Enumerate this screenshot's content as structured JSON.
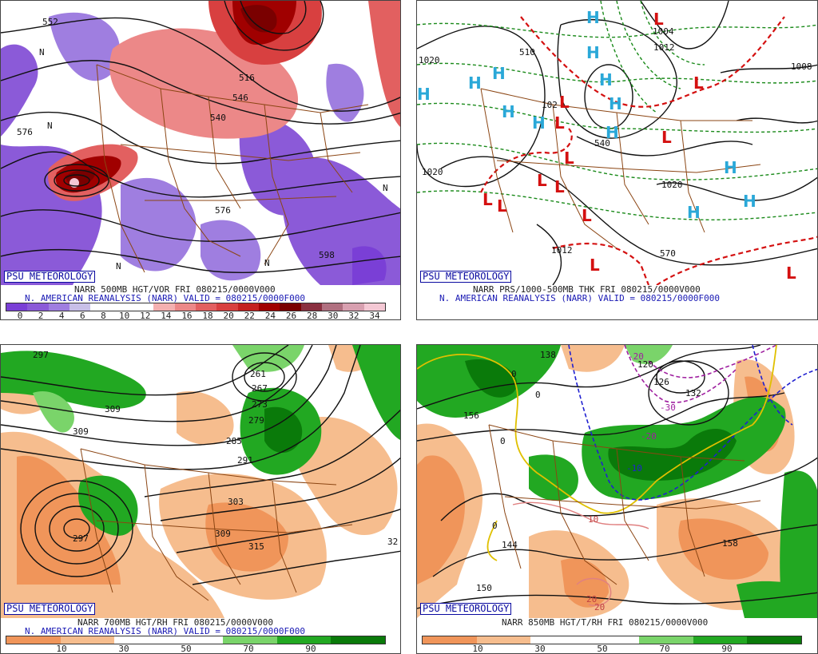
{
  "panels": [
    {
      "id": "p1",
      "badge": "PSU METEOROLOGY",
      "caption1": "NARR 500MB HGT/VOR FRI 080215/0000V000",
      "caption2": "N. AMERICAN REANALYSIS (NARR) VALID = 080215/0000F000",
      "ticks": [
        "0",
        "2",
        "4",
        "6",
        "8",
        "10",
        "12",
        "14",
        "16",
        "18",
        "20",
        "22",
        "24",
        "26",
        "28",
        "30",
        "32",
        "34"
      ],
      "colors": [
        "#7a3fd6",
        "#8b5ad8",
        "#9f7ee0",
        "#c8bfe8",
        "#ffffff",
        "#ffffff",
        "#ffffff",
        "#f4b0b0",
        "#ec8888",
        "#e26060",
        "#d84040",
        "#c42020",
        "#a00000",
        "#7a0000",
        "#8a3040",
        "#b07080",
        "#d8a0b0",
        "#f4c8d4"
      ],
      "map_labels": [
        "552",
        "576",
        "576",
        "598",
        "546",
        "540",
        "516",
        "N",
        "N",
        "N",
        "N",
        "N"
      ]
    },
    {
      "id": "p2",
      "badge": "PSU METEOROLOGY",
      "caption1": "NARR PRS/1000-500MB THK FRI 080215/0000V000",
      "caption2": "N. AMERICAN REANALYSIS (NARR) VALID = 080215/0000F000",
      "map_labels": [
        "1020",
        "1020",
        "1004",
        "1012",
        "1008",
        "1020",
        "102",
        "1012",
        "570",
        "510",
        "540"
      ],
      "highs": [
        "H",
        "H",
        "H",
        "H",
        "H",
        "H",
        "H",
        "H",
        "H",
        "H",
        "H",
        "H",
        "H"
      ],
      "lows": [
        "L",
        "L",
        "L",
        "L",
        "L",
        "L",
        "L",
        "L",
        "L",
        "L",
        "L",
        "L",
        "L"
      ]
    },
    {
      "id": "p3",
      "badge": "PSU METEOROLOGY",
      "caption1": "NARR 700MB HGT/RH FRI 080215/0000V000",
      "caption2": "N. AMERICAN REANALYSIS (NARR) VALID = 080215/0000F000",
      "ticks": [
        "10",
        "30",
        "50",
        "70",
        "90"
      ],
      "colors": [
        "#f0955a",
        "#f6bd8e",
        "#ffffff",
        "#ffffff",
        "#7ad46a",
        "#22a822",
        "#0a7a0a"
      ],
      "map_labels": [
        "297",
        "309",
        "309",
        "261",
        "267",
        "273",
        "279",
        "285",
        "291",
        "297",
        "303",
        "309",
        "315",
        "32"
      ]
    },
    {
      "id": "p4",
      "badge": "PSU METEOROLOGY",
      "caption1": "NARR 850MB HGT/T/RH FRI 080215/0000V000",
      "caption2": "",
      "ticks": [
        "10",
        "30",
        "50",
        "70",
        "90"
      ],
      "colors": [
        "#f0955a",
        "#f6bd8e",
        "#ffffff",
        "#ffffff",
        "#7ad46a",
        "#22a822",
        "#0a7a0a"
      ],
      "map_labels": [
        "156",
        "150",
        "144",
        "138",
        "120",
        "126",
        "132",
        "-20",
        "-10",
        "-30",
        "-20",
        "0",
        "0",
        "0",
        "0",
        "10",
        "20",
        "20",
        "158"
      ]
    }
  ]
}
